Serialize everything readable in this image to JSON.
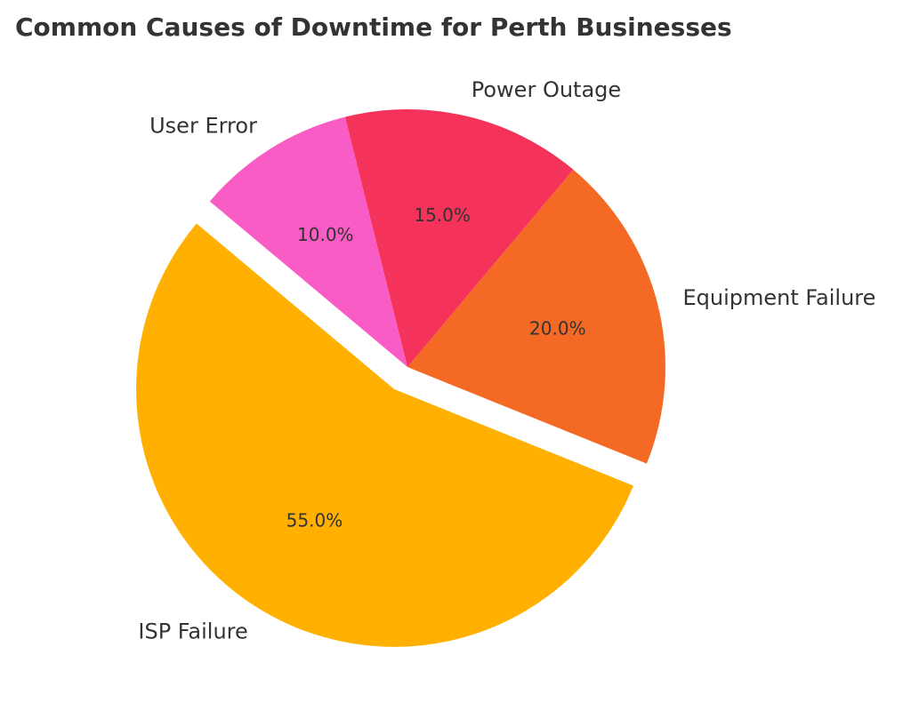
{
  "chart_data": {
    "type": "pie",
    "title": "Common Causes of Downtime for Perth Businesses",
    "categories": [
      "ISP Failure",
      "Equipment Failure",
      "Power Outage",
      "User Error"
    ],
    "values": [
      55,
      20,
      15,
      10
    ],
    "value_labels": [
      "55.0%",
      "20.0%",
      "15.0%",
      "10.0%"
    ],
    "colors": [
      "#ffb000",
      "#f46a25",
      "#f5325a",
      "#f95cc5"
    ],
    "explode": [
      0.1,
      0,
      0,
      0
    ]
  }
}
